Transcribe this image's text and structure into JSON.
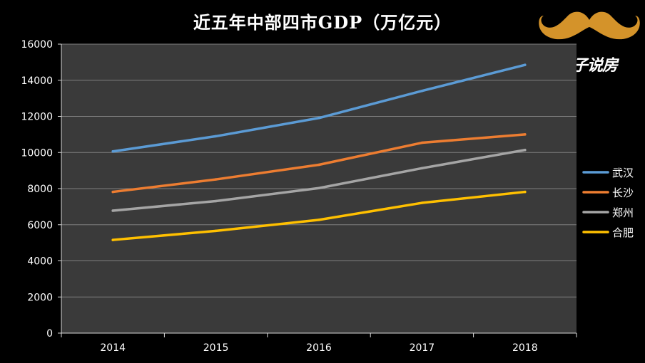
{
  "chart_data": {
    "type": "line",
    "title": "近五年中部四市GDP（万亿元）",
    "xlabel": "",
    "ylabel": "",
    "categories": [
      "2014",
      "2015",
      "2016",
      "2017",
      "2018"
    ],
    "ylim": [
      0,
      16000
    ],
    "yticks": [
      0,
      2000,
      4000,
      6000,
      8000,
      10000,
      12000,
      14000,
      16000
    ],
    "grid": true,
    "legend_position": "right",
    "series": [
      {
        "name": "武汉",
        "color": "#5b9bd5",
        "values": [
          10060,
          10900,
          11910,
          13410,
          14850
        ]
      },
      {
        "name": "长沙",
        "color": "#ed7d31",
        "values": [
          7820,
          8510,
          9320,
          10540,
          11000
        ]
      },
      {
        "name": "郑州",
        "color": "#a5a5a5",
        "values": [
          6780,
          7310,
          8030,
          9130,
          10140
        ]
      },
      {
        "name": "合肥",
        "color": "#ffc000",
        "values": [
          5160,
          5660,
          6270,
          7210,
          7820
        ]
      }
    ]
  },
  "logo": {
    "text": "大胡子说房",
    "mustache_color": "#d4932a",
    "icon": "mustache-icon"
  }
}
